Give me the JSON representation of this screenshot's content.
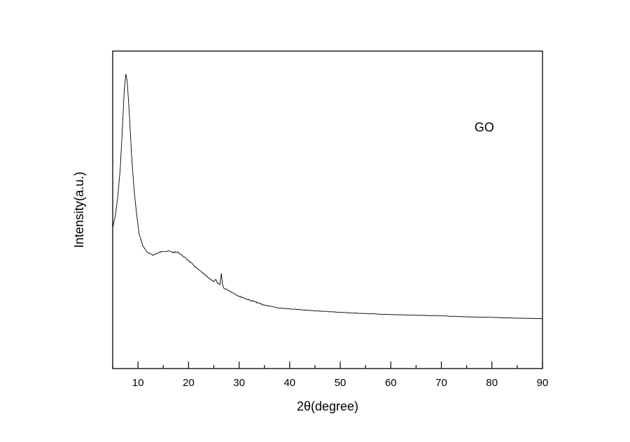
{
  "chart_data": {
    "type": "line",
    "title": "",
    "xlabel": "2θ(degree)",
    "ylabel": "Intensity(a.u.)",
    "xlim": [
      5,
      90
    ],
    "ylim": [
      0,
      100
    ],
    "y_tick_labels": false,
    "grid": false,
    "x_ticks": [
      10,
      20,
      30,
      40,
      50,
      60,
      70,
      80,
      90
    ],
    "x_minor_step": 5,
    "annotations": [
      {
        "text": "GO",
        "x": 78.5,
        "y": 76
      }
    ],
    "series": [
      {
        "color": "#000000",
        "x": [
          5,
          5.5,
          6,
          6.5,
          7,
          7.3,
          7.6,
          7.9,
          8.3,
          8.7,
          9.2,
          9.7,
          10.2,
          11,
          12,
          13,
          14,
          15,
          16,
          17,
          18,
          19,
          20,
          21,
          22,
          23,
          24,
          25,
          25.4,
          25.7,
          26.2,
          26.5,
          26.7,
          27,
          28,
          30,
          32,
          35,
          38,
          40,
          45,
          50,
          55,
          60,
          65,
          70,
          75,
          80,
          85,
          90
        ],
        "y": [
          44.4,
          48,
          54,
          63,
          78,
          88,
          92.7,
          90,
          80,
          68,
          57,
          49,
          42.5,
          38.5,
          36.3,
          35.8,
          36.4,
          37,
          37,
          36.6,
          36.6,
          35.3,
          34,
          32.5,
          31.1,
          29.8,
          28.4,
          27.5,
          28,
          27,
          26.3,
          30,
          26.5,
          25.3,
          24.6,
          22.8,
          21.6,
          20,
          19,
          18.8,
          18.2,
          17.7,
          17.3,
          17,
          16.8,
          16.6,
          16.3,
          16.1,
          15.9,
          15.7
        ]
      }
    ]
  }
}
